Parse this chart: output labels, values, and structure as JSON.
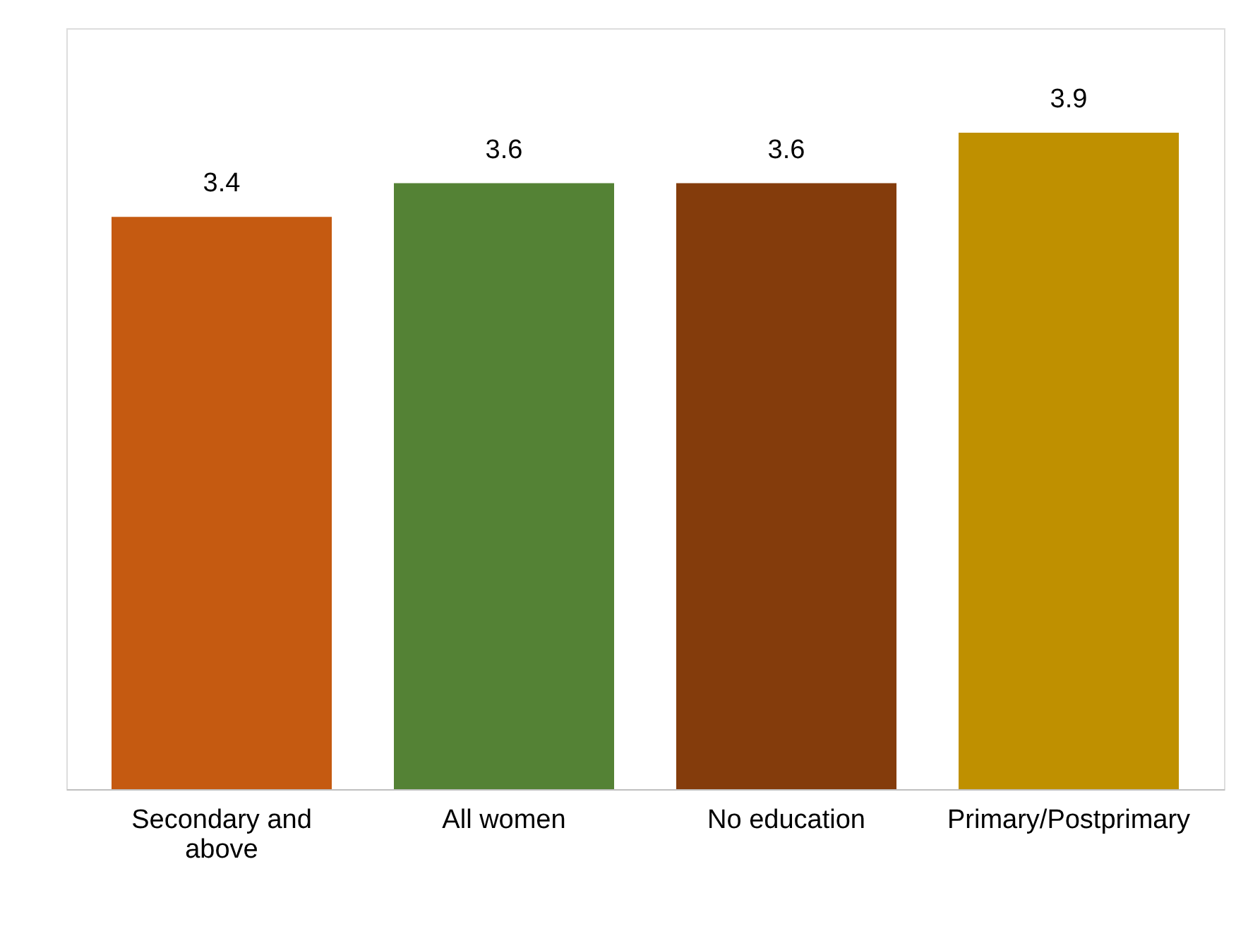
{
  "chart_data": {
    "type": "bar",
    "categories": [
      "Secondary and above",
      "All women",
      "No education",
      "Primary/Postprimary"
    ],
    "values": [
      3.4,
      3.6,
      3.6,
      3.9
    ],
    "colors": [
      "#c55a11",
      "#548235",
      "#843c0c",
      "#bf9000"
    ],
    "data_labels": true,
    "grid": false
  }
}
